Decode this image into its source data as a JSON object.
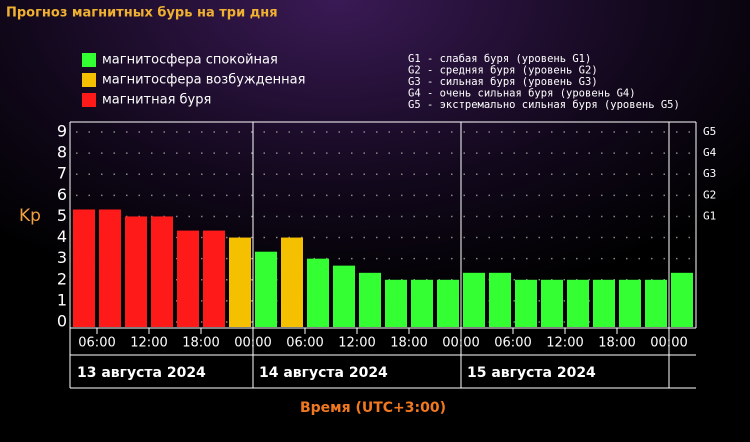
{
  "chart_data": {
    "type": "bar",
    "title": "Прогноз магнитных бурь на три дня",
    "legend": [
      {
        "name": "магнитосфера спокойная",
        "color": "#33ff33"
      },
      {
        "name": "магнитосфера возбужденная",
        "color": "#f5c000"
      },
      {
        "name": "магнитная буря",
        "color": "#ff1a1a"
      }
    ],
    "g_scale": [
      "G1 - слабая буря (уровень G1)",
      "G2 - средняя буря (уровень G2)",
      "G3 - сильная буря (уровень G3)",
      "G4 - очень сильная буря (уровень G4)",
      "G5 - экстремально сильная буря (уровень G5)"
    ],
    "ylabel": "Kp",
    "xlabel": "Время (UTC+3:00)",
    "x": [
      3,
      6,
      9,
      12,
      15,
      18,
      21,
      24,
      27,
      30,
      33,
      36,
      39,
      42,
      45,
      48,
      51,
      54,
      57,
      60,
      63,
      66,
      69,
      72
    ],
    "xlim": [
      3,
      75
    ],
    "series": [
      {
        "name": "Kp",
        "values": [
          5.33,
          5.33,
          5,
          5,
          4.33,
          4.33,
          4,
          3.33,
          4,
          3,
          2.67,
          2.33,
          2,
          2,
          2,
          2.33,
          2.33,
          2,
          2,
          2,
          2,
          2,
          2,
          2.33
        ],
        "colors": [
          "#ff1a1a",
          "#ff1a1a",
          "#ff1a1a",
          "#ff1a1a",
          "#ff1a1a",
          "#ff1a1a",
          "#f5c000",
          "#33ff33",
          "#f5c000",
          "#33ff33",
          "#33ff33",
          "#33ff33",
          "#33ff33",
          "#33ff33",
          "#33ff33",
          "#33ff33",
          "#33ff33",
          "#33ff33",
          "#33ff33",
          "#33ff33",
          "#33ff33",
          "#33ff33",
          "#33ff33",
          "#33ff33"
        ]
      }
    ],
    "ylim": [
      0,
      9
    ],
    "yticks": [
      0,
      1,
      2,
      3,
      4,
      5,
      6,
      7,
      8,
      9
    ],
    "y2ticks": [
      {
        "value": 5,
        "label": "G1"
      },
      {
        "value": 6,
        "label": "G2"
      },
      {
        "value": 7,
        "label": "G3"
      },
      {
        "value": 8,
        "label": "G4"
      },
      {
        "value": 9,
        "label": "G5"
      }
    ],
    "xticks": [
      {
        "value": 6,
        "label": "06:00"
      },
      {
        "value": 12,
        "label": "12:00"
      },
      {
        "value": 18,
        "label": "18:00"
      },
      {
        "value": 24,
        "label": "00:00"
      },
      {
        "value": 30,
        "label": "06:00"
      },
      {
        "value": 36,
        "label": "12:00"
      },
      {
        "value": 42,
        "label": "18:00"
      },
      {
        "value": 48,
        "label": "00:00"
      },
      {
        "value": 54,
        "label": "06:00"
      },
      {
        "value": 60,
        "label": "12:00"
      },
      {
        "value": 66,
        "label": "18:00"
      },
      {
        "value": 72,
        "label": "00:00"
      }
    ],
    "days": [
      {
        "value": 3,
        "label": "13 августа 2024"
      },
      {
        "value": 24,
        "label": "14 августа 2024"
      },
      {
        "value": 48,
        "label": "15 августа 2024"
      },
      {
        "value": 72
      }
    ],
    "grid": true
  }
}
